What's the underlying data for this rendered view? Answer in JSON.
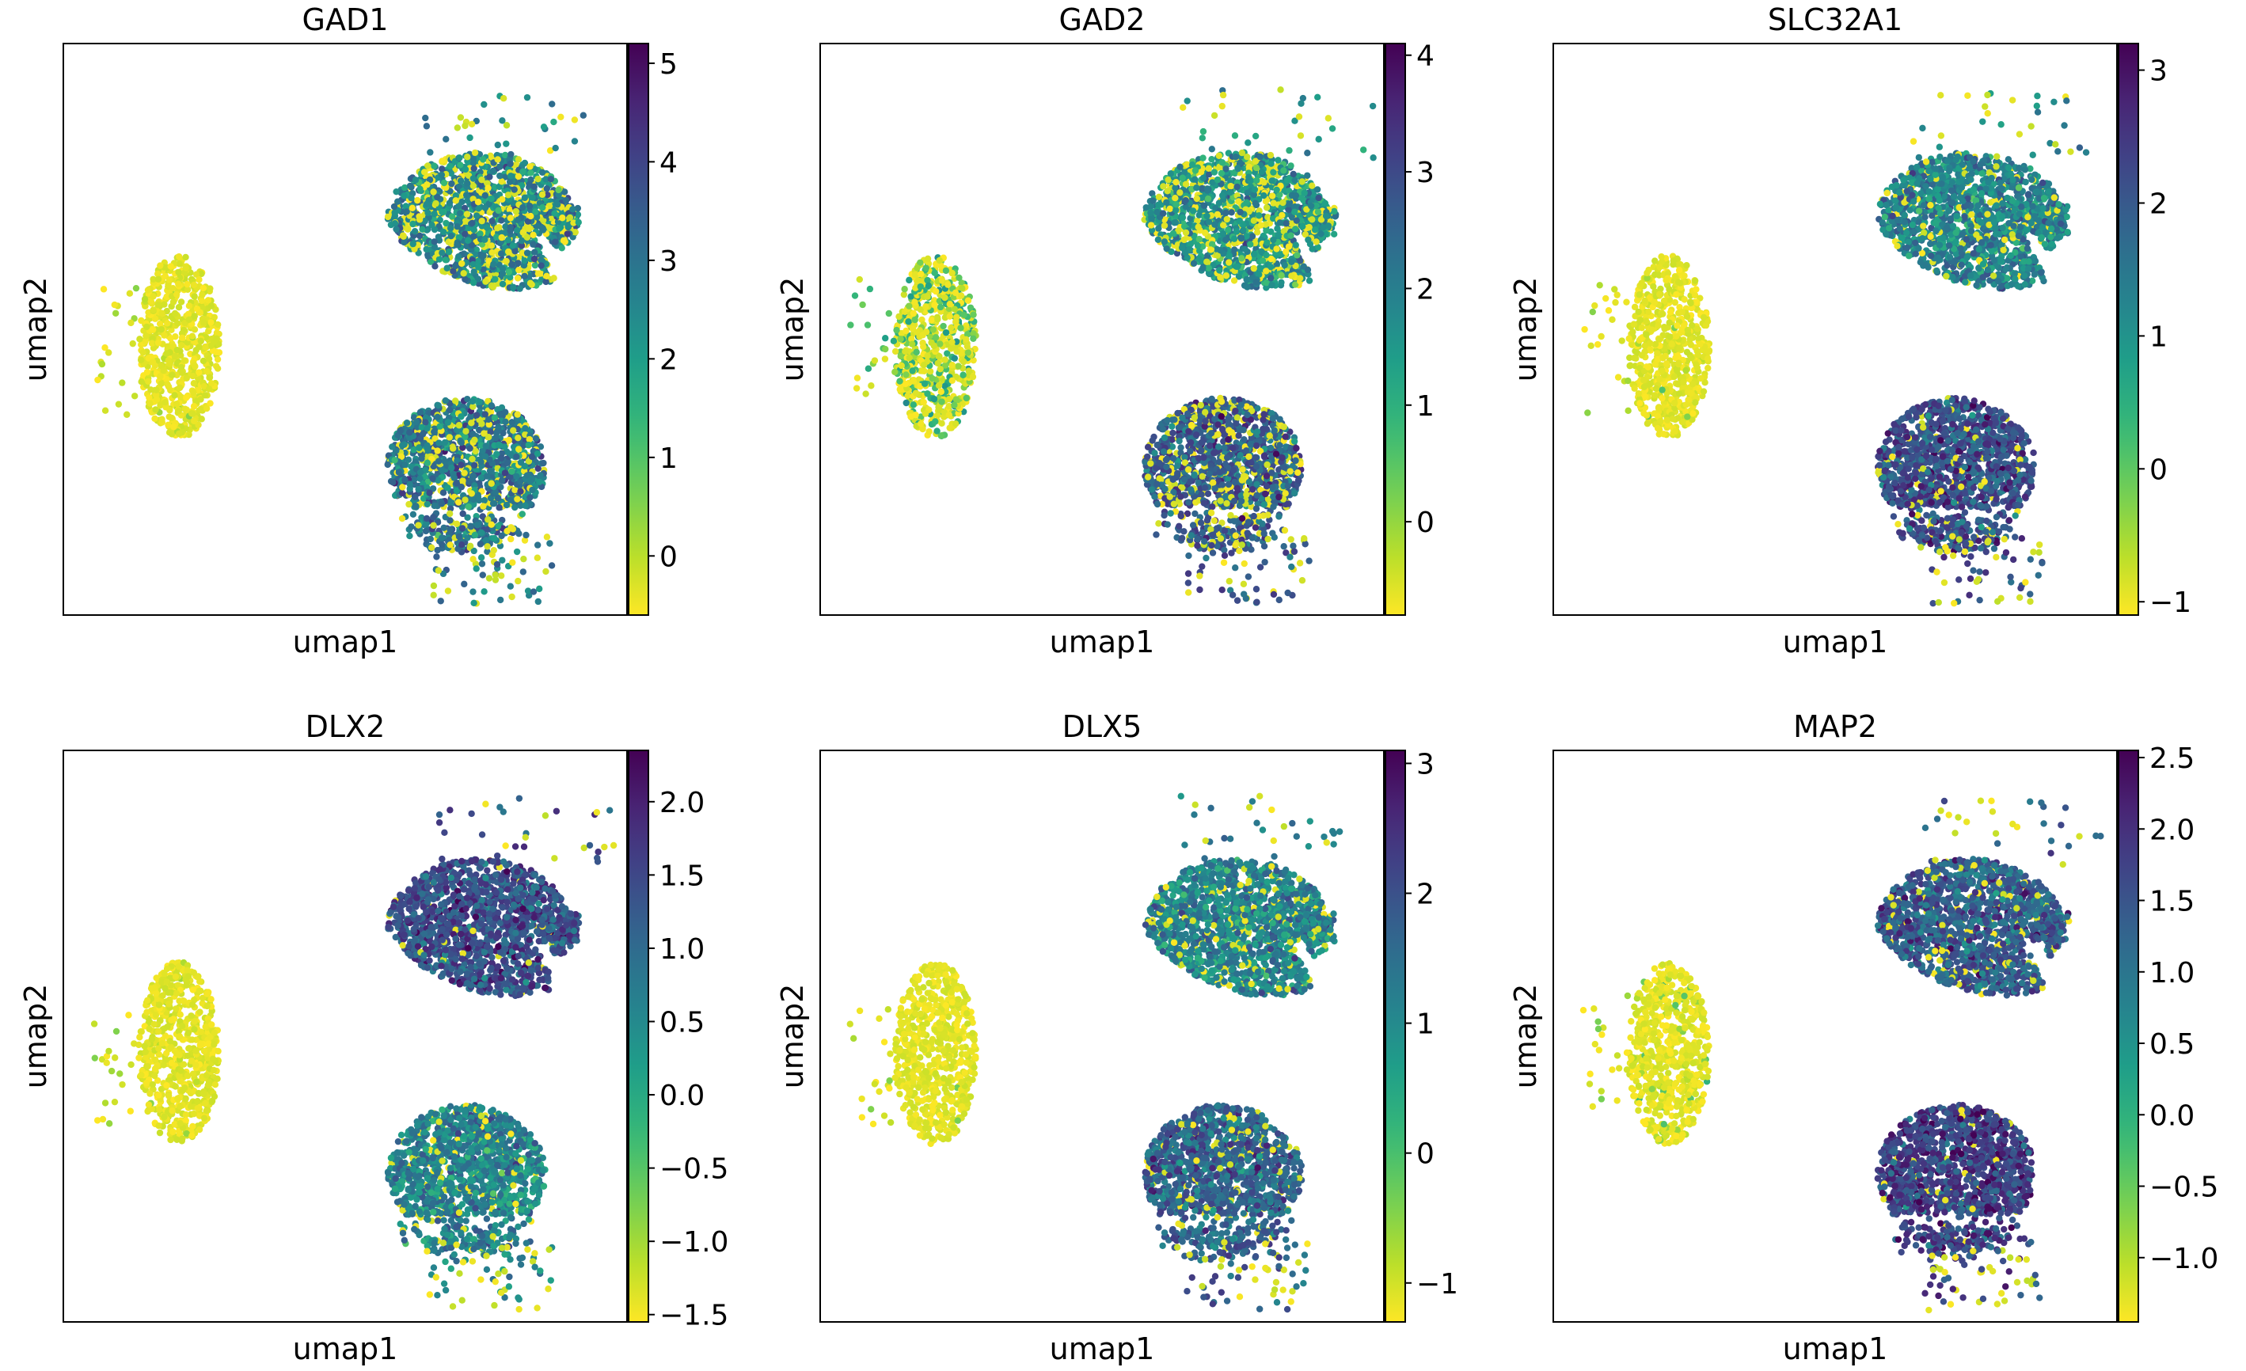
{
  "chart_data": [
    {
      "type": "scatter",
      "title": "GAD1",
      "xlabel": "umap1",
      "ylabel": "umap2",
      "colormap": "viridis_r",
      "colorbar": {
        "vmin": -0.6,
        "vmax": 5.2,
        "ticks": [
          0,
          1,
          2,
          3,
          4,
          5
        ],
        "tick_labels": [
          "0",
          "1",
          "2",
          "3",
          "4",
          "5"
        ]
      },
      "clusters": [
        {
          "name": "left",
          "low_fraction": 0.97,
          "level": 0.05
        },
        {
          "name": "upper-right",
          "low_fraction": 0.3,
          "level": 0.55
        },
        {
          "name": "lower-right",
          "low_fraction": 0.2,
          "level": 0.6
        }
      ]
    },
    {
      "type": "scatter",
      "title": "GAD2",
      "xlabel": "umap1",
      "ylabel": "umap2",
      "colormap": "viridis_r",
      "colorbar": {
        "vmin": -0.8,
        "vmax": 4.1,
        "ticks": [
          0,
          1,
          2,
          3,
          4
        ],
        "tick_labels": [
          "0",
          "1",
          "2",
          "3",
          "4"
        ]
      },
      "clusters": [
        {
          "name": "left",
          "low_fraction": 0.6,
          "level": 0.3
        },
        {
          "name": "upper-right",
          "low_fraction": 0.25,
          "level": 0.5
        },
        {
          "name": "lower-right",
          "low_fraction": 0.2,
          "level": 0.7
        }
      ]
    },
    {
      "type": "scatter",
      "title": "SLC32A1",
      "xlabel": "umap1",
      "ylabel": "umap2",
      "colormap": "viridis_r",
      "colorbar": {
        "vmin": -1.1,
        "vmax": 3.2,
        "ticks": [
          -1,
          0,
          1,
          2,
          3
        ],
        "tick_labels": [
          "−1",
          "0",
          "1",
          "2",
          "3"
        ]
      },
      "clusters": [
        {
          "name": "left",
          "low_fraction": 0.97,
          "level": 0.05
        },
        {
          "name": "upper-right",
          "low_fraction": 0.1,
          "level": 0.55
        },
        {
          "name": "lower-right",
          "low_fraction": 0.05,
          "level": 0.75
        }
      ]
    },
    {
      "type": "scatter",
      "title": "DLX2",
      "xlabel": "umap1",
      "ylabel": "umap2",
      "colormap": "viridis_r",
      "colorbar": {
        "vmin": -1.55,
        "vmax": 2.35,
        "ticks": [
          -1.5,
          -1.0,
          -0.5,
          0.0,
          0.5,
          1.0,
          1.5,
          2.0
        ],
        "tick_labels": [
          "−1.5",
          "−1.0",
          "−0.5",
          "0.0",
          "0.5",
          "1.0",
          "1.5",
          "2.0"
        ]
      },
      "clusters": [
        {
          "name": "left",
          "low_fraction": 0.97,
          "level": 0.05
        },
        {
          "name": "upper-right",
          "low_fraction": 0.02,
          "level": 0.75
        },
        {
          "name": "lower-right",
          "low_fraction": 0.08,
          "level": 0.55
        }
      ]
    },
    {
      "type": "scatter",
      "title": "DLX5",
      "xlabel": "umap1",
      "ylabel": "umap2",
      "colormap": "viridis_r",
      "colorbar": {
        "vmin": -1.3,
        "vmax": 3.1,
        "ticks": [
          -1,
          0,
          1,
          2,
          3
        ],
        "tick_labels": [
          "−1",
          "0",
          "1",
          "2",
          "3"
        ]
      },
      "clusters": [
        {
          "name": "left",
          "low_fraction": 0.98,
          "level": 0.05
        },
        {
          "name": "upper-right",
          "low_fraction": 0.1,
          "level": 0.55
        },
        {
          "name": "lower-right",
          "low_fraction": 0.08,
          "level": 0.68
        }
      ]
    },
    {
      "type": "scatter",
      "title": "MAP2",
      "xlabel": "umap1",
      "ylabel": "umap2",
      "colormap": "viridis_r",
      "colorbar": {
        "vmin": -1.45,
        "vmax": 2.55,
        "ticks": [
          -1.0,
          -0.5,
          0.0,
          0.5,
          1.0,
          1.5,
          2.0,
          2.5
        ],
        "tick_labels": [
          "−1.0",
          "−0.5",
          "0.0",
          "0.5",
          "1.0",
          "1.5",
          "2.0",
          "2.5"
        ]
      },
      "clusters": [
        {
          "name": "left",
          "low_fraction": 0.9,
          "level": 0.1
        },
        {
          "name": "upper-right",
          "low_fraction": 0.08,
          "level": 0.7
        },
        {
          "name": "lower-right",
          "low_fraction": 0.04,
          "level": 0.8
        }
      ]
    }
  ]
}
